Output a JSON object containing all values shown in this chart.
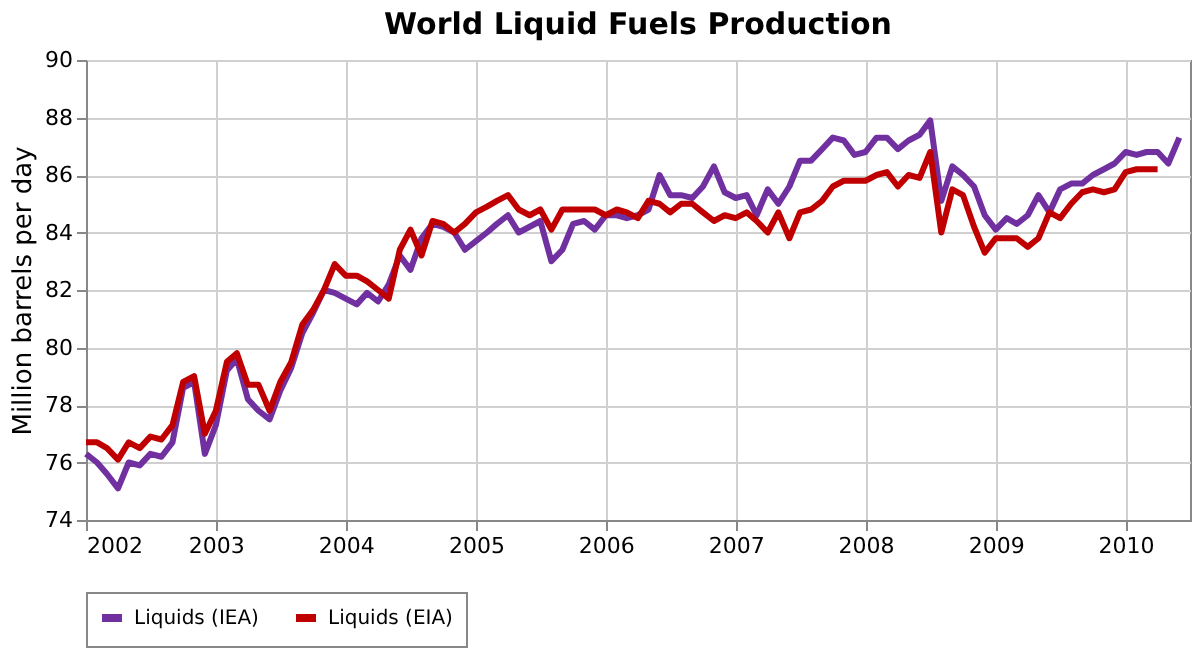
{
  "chart_data": {
    "type": "line",
    "title": "World Liquid Fuels Production",
    "ylabel": "Million barrels per day",
    "x": [
      "2002-01",
      "2002-02",
      "2002-03",
      "2002-04",
      "2002-05",
      "2002-06",
      "2002-07",
      "2002-08",
      "2002-09",
      "2002-10",
      "2002-11",
      "2002-12",
      "2003-01",
      "2003-02",
      "2003-03",
      "2003-04",
      "2003-05",
      "2003-06",
      "2003-07",
      "2003-08",
      "2003-09",
      "2003-10",
      "2003-11",
      "2003-12",
      "2004-01",
      "2004-02",
      "2004-03",
      "2004-04",
      "2004-05",
      "2004-06",
      "2004-07",
      "2004-08",
      "2004-09",
      "2004-10",
      "2004-11",
      "2004-12",
      "2005-01",
      "2005-02",
      "2005-03",
      "2005-04",
      "2005-05",
      "2005-06",
      "2005-07",
      "2005-08",
      "2005-09",
      "2005-10",
      "2005-11",
      "2005-12",
      "2006-01",
      "2006-02",
      "2006-03",
      "2006-04",
      "2006-05",
      "2006-06",
      "2006-07",
      "2006-08",
      "2006-09",
      "2006-10",
      "2006-11",
      "2006-12",
      "2007-01",
      "2007-02",
      "2007-03",
      "2007-04",
      "2007-05",
      "2007-06",
      "2007-07",
      "2007-08",
      "2007-09",
      "2007-10",
      "2007-11",
      "2007-12",
      "2008-01",
      "2008-02",
      "2008-03",
      "2008-04",
      "2008-05",
      "2008-06",
      "2008-07",
      "2008-08",
      "2008-09",
      "2008-10",
      "2008-11",
      "2008-12",
      "2009-01",
      "2009-02",
      "2009-03",
      "2009-04",
      "2009-05",
      "2009-06",
      "2009-07",
      "2009-08",
      "2009-09",
      "2009-10",
      "2009-11",
      "2009-12",
      "2010-01",
      "2010-02",
      "2010-03",
      "2010-04",
      "2010-05",
      "2010-06"
    ],
    "series": [
      {
        "name": "Liquids (IEA)",
        "color": "#7030a0",
        "values": [
          76.3,
          76.0,
          75.6,
          75.1,
          76.0,
          75.9,
          76.3,
          76.2,
          76.7,
          78.6,
          78.8,
          76.3,
          77.3,
          79.2,
          79.6,
          78.2,
          77.8,
          77.5,
          78.5,
          79.3,
          80.5,
          81.2,
          82.0,
          81.9,
          81.7,
          81.5,
          81.9,
          81.6,
          82.2,
          83.2,
          82.7,
          83.8,
          84.3,
          84.2,
          84.0,
          83.4,
          83.7,
          84.0,
          84.3,
          84.6,
          84.0,
          84.2,
          84.4,
          83.0,
          83.4,
          84.3,
          84.4,
          84.1,
          84.6,
          84.6,
          84.5,
          84.6,
          84.8,
          86.0,
          85.3,
          85.3,
          85.2,
          85.6,
          86.3,
          85.4,
          85.2,
          85.3,
          84.6,
          85.5,
          85.0,
          85.6,
          86.5,
          86.5,
          86.9,
          87.3,
          87.2,
          86.7,
          86.8,
          87.3,
          87.3,
          86.9,
          87.2,
          87.4,
          87.9,
          85.1,
          86.3,
          86.0,
          85.6,
          84.6,
          84.1,
          84.5,
          84.3,
          84.6,
          85.3,
          84.7,
          85.5,
          85.7,
          85.7,
          86.0,
          86.2,
          86.4,
          86.8,
          86.7,
          86.8,
          86.8,
          86.4,
          87.3
        ]
      },
      {
        "name": "Liquids (EIA)",
        "color": "#c00000",
        "values": [
          76.7,
          76.7,
          76.5,
          76.1,
          76.7,
          76.5,
          76.9,
          76.8,
          77.3,
          78.8,
          79.0,
          77.0,
          77.8,
          79.5,
          79.8,
          78.7,
          78.7,
          77.8,
          78.8,
          79.5,
          80.8,
          81.3,
          82.0,
          82.9,
          82.5,
          82.5,
          82.3,
          82.0,
          81.7,
          83.4,
          84.1,
          83.2,
          84.4,
          84.3,
          84.0,
          84.3,
          84.7,
          84.9,
          85.1,
          85.3,
          84.8,
          84.6,
          84.8,
          84.1,
          84.8,
          84.8,
          84.8,
          84.8,
          84.6,
          84.8,
          84.7,
          84.5,
          85.1,
          85.0,
          84.7,
          85.0,
          85.0,
          84.7,
          84.4,
          84.6,
          84.5,
          84.7,
          84.4,
          84.0,
          84.7,
          83.8,
          84.7,
          84.8,
          85.1,
          85.6,
          85.8,
          85.8,
          85.8,
          86.0,
          86.1,
          85.6,
          86.0,
          85.9,
          86.8,
          84.0,
          85.5,
          85.3,
          84.2,
          83.3,
          83.8,
          83.8,
          83.8,
          83.5,
          83.8,
          84.7,
          84.5,
          85.0,
          85.4,
          85.5,
          85.4,
          85.5,
          86.1,
          86.2,
          86.2,
          86.2,
          null,
          null
        ]
      }
    ],
    "xlim": [
      "2002-01",
      "2010-07"
    ],
    "xticks": [
      "2002",
      "2003",
      "2004",
      "2005",
      "2006",
      "2007",
      "2008",
      "2009",
      "2010"
    ],
    "ylim": [
      74,
      90
    ],
    "yticks": [
      74,
      76,
      78,
      80,
      82,
      84,
      86,
      88,
      90
    ],
    "grid": true,
    "legend": "bottom",
    "marker": "none",
    "line_style": "solid"
  }
}
